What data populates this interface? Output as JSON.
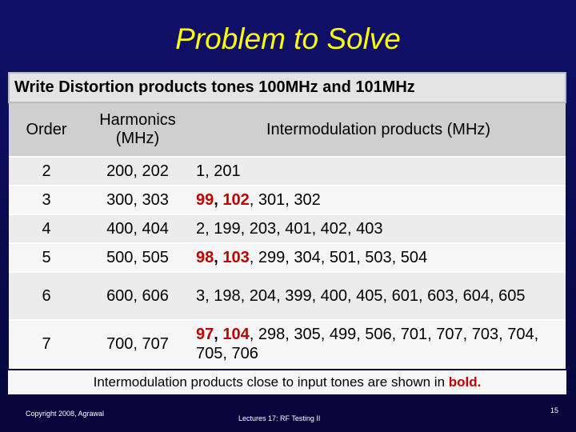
{
  "header": {
    "title": "Problem to Solve"
  },
  "table": {
    "caption": "Write Distortion products tones 100MHz and 101MHz",
    "columns": [
      "Order",
      "Harmonics (MHz)",
      "Intermodulation products (MHz)"
    ],
    "rows": [
      {
        "order": "2",
        "harmonics": "200, 202",
        "intermod": [
          {
            "text": "1, 201"
          }
        ]
      },
      {
        "order": "3",
        "harmonics": "300, 303",
        "intermod": [
          {
            "text": "99",
            "bold": true,
            "color": "#c00000"
          },
          {
            "text": ",",
            "bold": true
          },
          {
            "text": " 102",
            "bold": true,
            "color": "#c00000"
          },
          {
            "text": ", 301, 302"
          }
        ]
      },
      {
        "order": "4",
        "harmonics": "400, 404",
        "intermod": [
          {
            "text": "2, 199, 203, 401, 402, 403"
          }
        ]
      },
      {
        "order": "5",
        "harmonics": "500, 505",
        "intermod": [
          {
            "text": "98",
            "bold": true,
            "color": "#c00000"
          },
          {
            "text": ",",
            "bold": true
          },
          {
            "text": " 103",
            "bold": true,
            "color": "#c00000"
          },
          {
            "text": ", 299, 304, 501, 503, 504"
          }
        ]
      },
      {
        "order": "6",
        "harmonics": "600, 606",
        "intermod": [
          {
            "text": "3, 198, 204, 399, 400, 405, 601, 603, 604, 605"
          }
        ]
      },
      {
        "order": "7",
        "harmonics": "700, 707",
        "intermod": [
          {
            "text": "97",
            "bold": true,
            "color": "#c00000"
          },
          {
            "text": ",",
            "bold": true
          },
          {
            "text": " 104",
            "bold": true,
            "color": "#c00000"
          },
          {
            "text": ", 298, 305, 499, 506, 701, 707, 703, 704, 705, 706"
          }
        ]
      }
    ],
    "note": [
      {
        "text": "Intermodulation products close to input tones are shown in "
      },
      {
        "text": "bold.",
        "bold": true,
        "color": "#c00000"
      }
    ]
  },
  "footer": {
    "copyright": "Copyright 2008, Agrawal",
    "lecture": "Lectures 17: RF Testing II",
    "page": "15"
  }
}
